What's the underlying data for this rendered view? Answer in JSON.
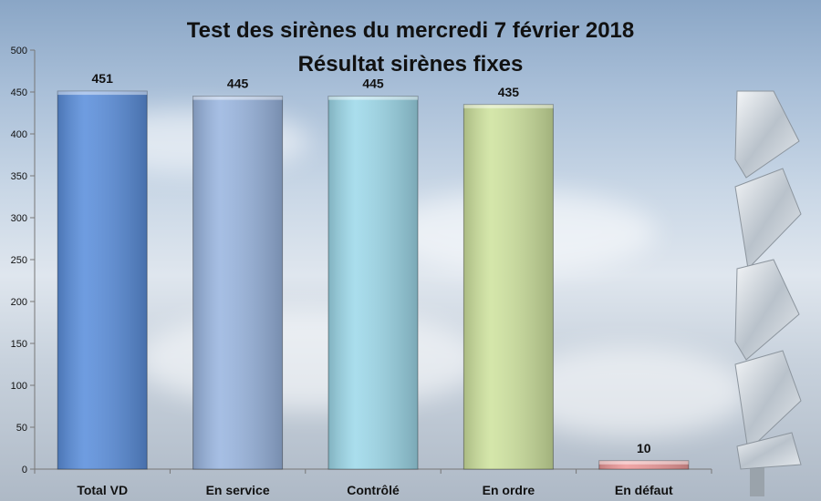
{
  "chart_data": {
    "type": "bar",
    "title": "Test des sirènes du mercredi 7 février 2018",
    "subtitle": "Résultat sirènes fixes",
    "categories": [
      "Total VD",
      "En service",
      "Contrôlé",
      "En ordre",
      "En défaut"
    ],
    "values": [
      451,
      445,
      445,
      435,
      10
    ],
    "colors": [
      "#5b8fdc",
      "#9ab6e0",
      "#9ed9ea",
      "#cfe39f",
      "#ee9a9a"
    ],
    "ylim": [
      0,
      500
    ],
    "yticks": [
      0,
      50,
      100,
      150,
      200,
      250,
      300,
      350,
      400,
      450,
      500
    ],
    "xlabel": "",
    "ylabel": "",
    "grid": false
  }
}
